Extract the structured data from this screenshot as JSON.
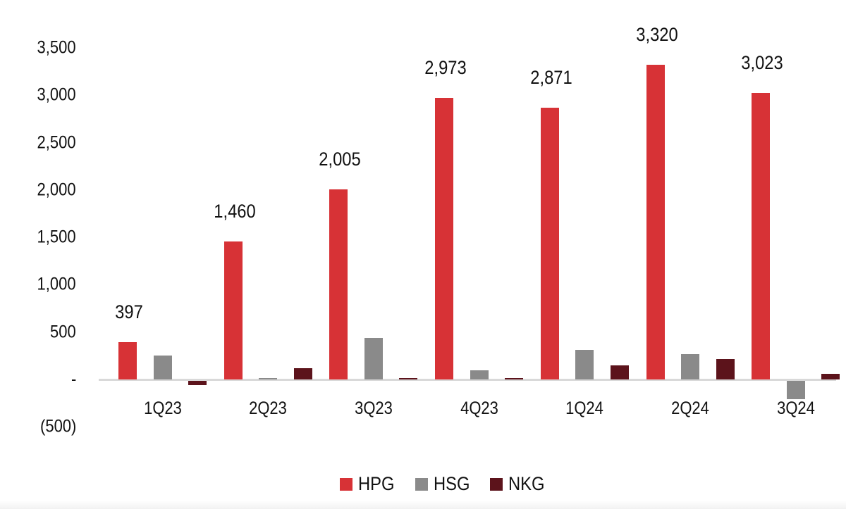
{
  "chart_data": {
    "type": "bar",
    "title": "",
    "xlabel": "",
    "ylabel": "",
    "ylim": [
      -500,
      3500
    ],
    "yticks": [
      -500,
      0,
      500,
      1000,
      1500,
      2000,
      2500,
      3000,
      3500
    ],
    "ytick_labels": [
      "(500)",
      "-",
      "500",
      "1,000",
      "1,500",
      "2,000",
      "2,500",
      "3,000",
      "3,500"
    ],
    "categories": [
      "1Q23",
      "2Q23",
      "3Q23",
      "4Q23",
      "1Q24",
      "2Q24",
      "3Q24"
    ],
    "series": [
      {
        "name": "HPG",
        "color": "#d73236",
        "values": [
          397,
          1460,
          2005,
          2973,
          2871,
          3320,
          3023
        ]
      },
      {
        "name": "HSG",
        "color": "#8a8a8a",
        "values": [
          250,
          10,
          440,
          100,
          310,
          265,
          -195
        ]
      },
      {
        "name": "NKG",
        "color": "#5c131b",
        "values": [
          -45,
          120,
          12,
          12,
          150,
          215,
          60
        ]
      }
    ],
    "data_labels": {
      "series": "HPG",
      "labels": [
        "397",
        "1,460",
        "2,005",
        "2,973",
        "2,871",
        "3,320",
        "3,023"
      ]
    },
    "grid": false,
    "legend_position": "bottom"
  },
  "legend": {
    "items": [
      {
        "label": "HPG",
        "color": "#d73236"
      },
      {
        "label": "HSG",
        "color": "#8a8a8a"
      },
      {
        "label": "NKG",
        "color": "#5c131b"
      }
    ]
  }
}
